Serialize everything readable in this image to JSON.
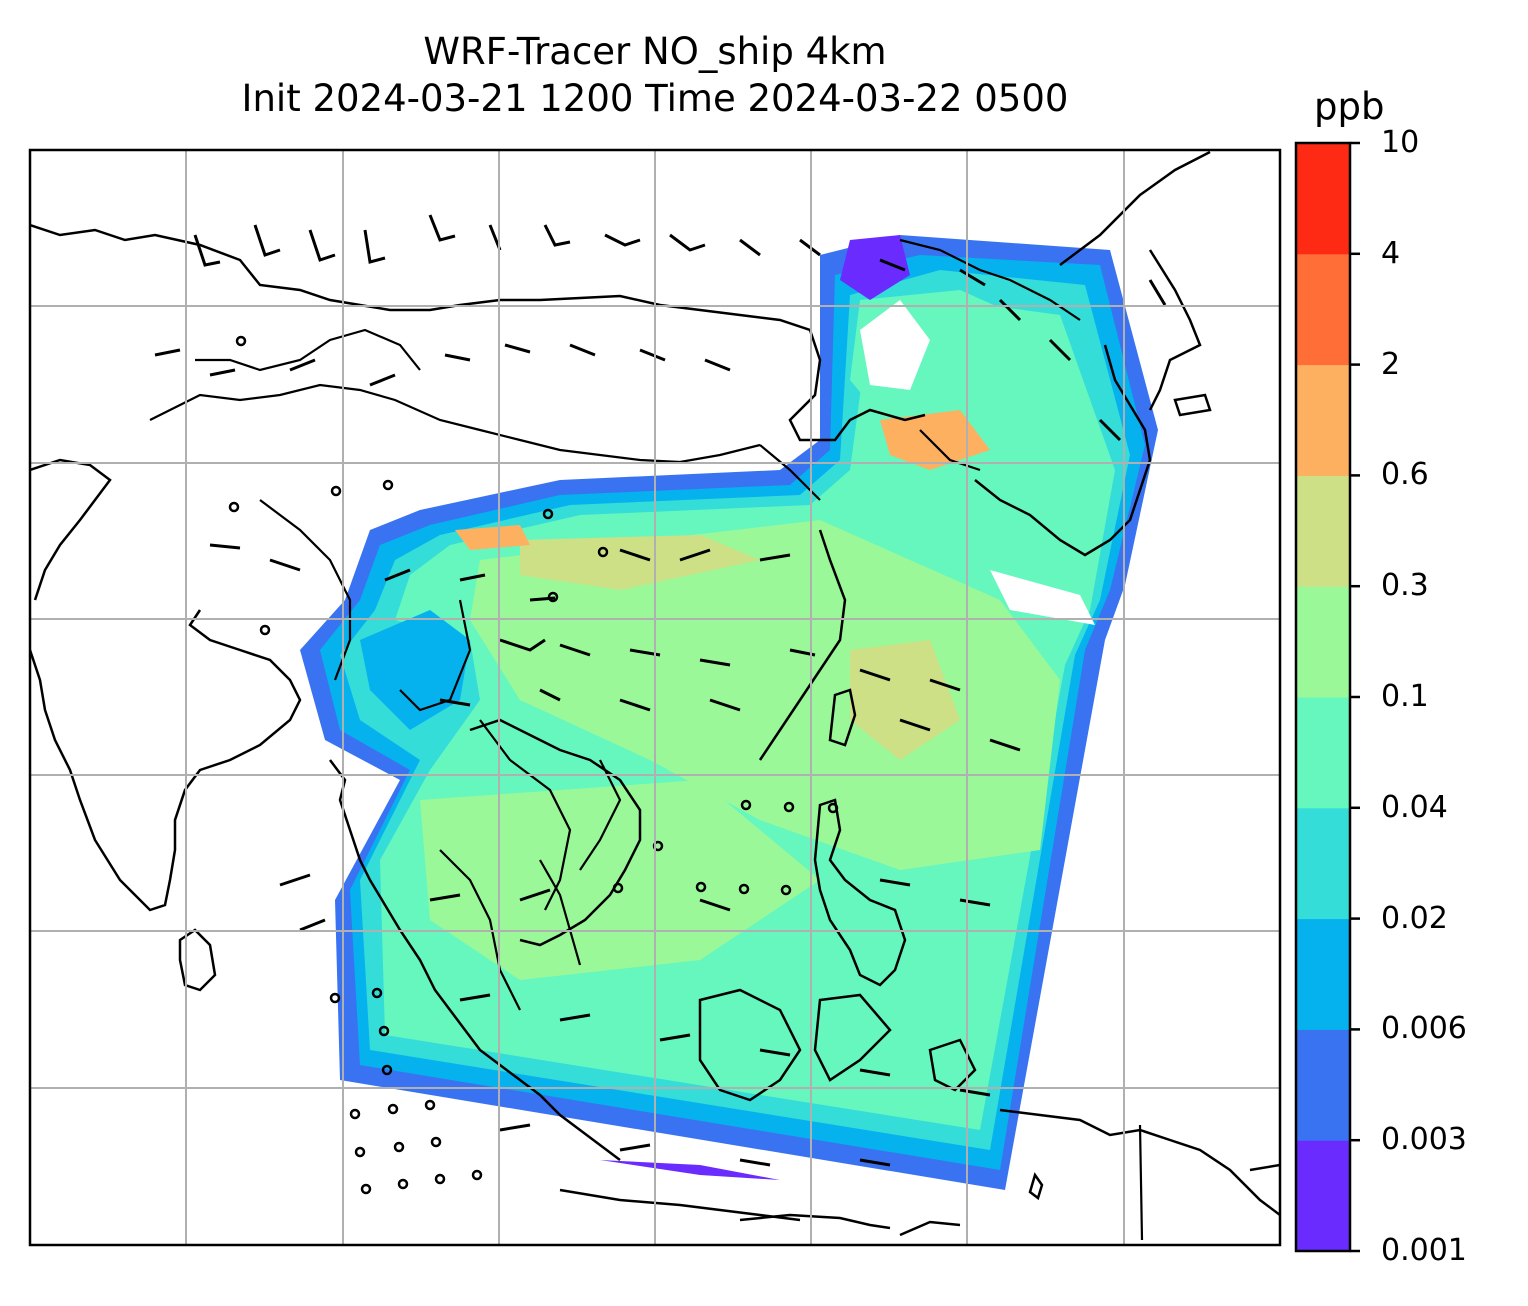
{
  "title": {
    "line1": "WRF-Tracer NO_ship 4km",
    "line2": "Init 2024-03-21 1200 Time 2024-03-22 0500"
  },
  "colorbar": {
    "unit": "ppb",
    "levels": [
      "0.001",
      "0.003",
      "0.006",
      "0.02",
      "0.04",
      "0.1",
      "0.3",
      "0.6",
      "2",
      "4",
      "10"
    ],
    "colors": [
      "#6a2bff",
      "#3a73f2",
      "#05b2ee",
      "#34ddd8",
      "#66f7bf",
      "#9af898",
      "#cde086",
      "#fdb05f",
      "#ff6e37",
      "#ff2a14"
    ]
  },
  "map": {
    "variable": "NO_ship tracer",
    "overlays": [
      "coastlines",
      "country-borders",
      "gridlines",
      "wind-barbs"
    ]
  }
}
